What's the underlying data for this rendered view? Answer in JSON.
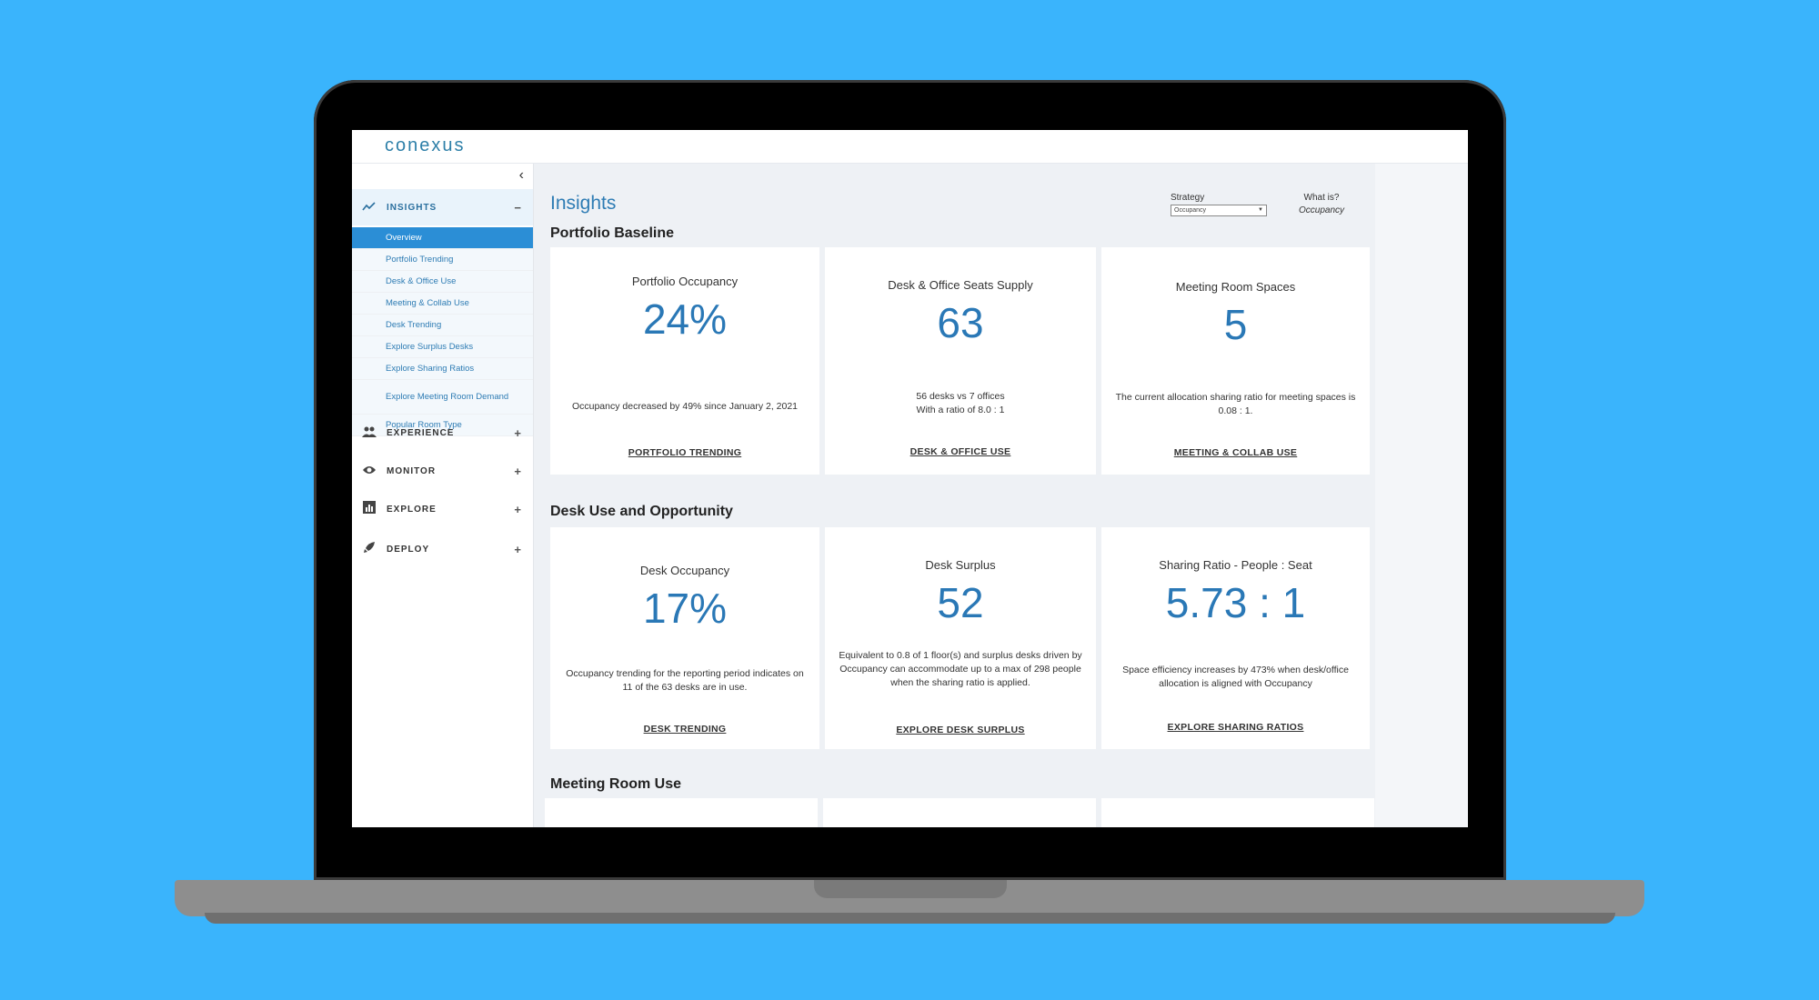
{
  "app": {
    "logo": "conexus"
  },
  "sidebar": {
    "collapse_icon": "‹",
    "insights": {
      "label": "INSIGHTS",
      "toggle": "−"
    },
    "items": [
      {
        "label": "Overview",
        "active": true
      },
      {
        "label": "Portfolio Trending"
      },
      {
        "label": "Desk & Office Use"
      },
      {
        "label": "Meeting & Collab Use"
      },
      {
        "label": "Desk Trending"
      },
      {
        "label": "Explore Surplus Desks"
      },
      {
        "label": "Explore Sharing Ratios"
      },
      {
        "label": "Explore Meeting Room Demand"
      },
      {
        "label": "Popular Room Type"
      }
    ],
    "sections": [
      {
        "label": "EXPERIENCE",
        "toggle": "+"
      },
      {
        "label": "MONITOR",
        "toggle": "+"
      },
      {
        "label": "EXPLORE",
        "toggle": "+"
      },
      {
        "label": "DEPLOY",
        "toggle": "+"
      }
    ]
  },
  "main": {
    "title": "Insights",
    "strategy_label": "Strategy",
    "strategy_value": "Occupancy",
    "whatis_label": "What is?",
    "whatis_value": "Occupancy",
    "sections": {
      "portfolio": "Portfolio Baseline",
      "desk": "Desk Use and Opportunity",
      "meeting": "Meeting Room Use"
    },
    "cards": {
      "portfolio_occupancy": {
        "title": "Portfolio Occupancy",
        "value": "24%",
        "desc": "Occupancy decreased by 49% since January 2, 2021",
        "link": "PORTFOLIO TRENDING"
      },
      "seats_supply": {
        "title": "Desk & Office Seats Supply",
        "value": "63",
        "desc1": "56 desks vs 7 offices",
        "desc2": "With a ratio of 8.0 : 1",
        "link": "DESK & OFFICE USE"
      },
      "meeting_spaces": {
        "title": "Meeting Room Spaces",
        "value": "5",
        "desc": "The current allocation sharing ratio for meeting spaces is 0.08 : 1.",
        "link": "MEETING & COLLAB USE"
      },
      "desk_occupancy": {
        "title": "Desk Occupancy",
        "value": "17%",
        "desc": "Occupancy trending for the reporting period indicates on 11 of the 63 desks are in use.",
        "link": "DESK TRENDING"
      },
      "desk_surplus": {
        "title": "Desk Surplus",
        "value": "52",
        "desc": "Equivalent to 0.8 of 1 floor(s) and surplus desks driven by Occupancy can accommodate up to a max of 298 people when the sharing ratio is applied.",
        "link": "EXPLORE DESK SURPLUS"
      },
      "sharing_ratio": {
        "title": "Sharing Ratio - People : Seat",
        "value": "5.73 : 1",
        "desc": "Space efficiency increases by 473% when desk/office allocation is aligned with Occupancy",
        "link": "EXPLORE SHARING RATIOS"
      }
    }
  },
  "colors": {
    "background": "#3ab4fc",
    "accent": "#2a78b6",
    "active_nav": "#2b8ed6"
  }
}
